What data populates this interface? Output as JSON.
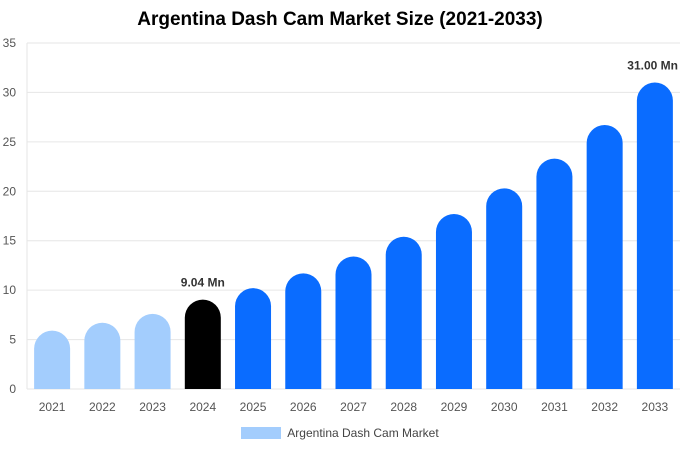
{
  "chart_data": {
    "type": "bar",
    "title": "Argentina Dash Cam Market Size (2021-2033)",
    "categories": [
      "2021",
      "2022",
      "2023",
      "2024",
      "2025",
      "2026",
      "2027",
      "2028",
      "2029",
      "2030",
      "2031",
      "2032",
      "2033"
    ],
    "series": [
      {
        "name": "Argentina Dash Cam Market",
        "values": [
          5.9,
          6.7,
          7.6,
          9.04,
          10.2,
          11.7,
          13.4,
          15.4,
          17.7,
          20.3,
          23.3,
          26.7,
          31.0
        ]
      }
    ],
    "ylim": [
      0,
      35
    ],
    "yticks": [
      0,
      5,
      10,
      15,
      20,
      25,
      30,
      35
    ],
    "grid": true,
    "legend": "bottom",
    "data_labels": [
      {
        "index": 3,
        "text": "9.04 Mn"
      },
      {
        "index": 12,
        "text": "31.00 Mn"
      }
    ],
    "colors": {
      "historical": "#a3cdfd",
      "base_year": "#000000",
      "forecast": "#0a6cff",
      "grid": "#e6e6e6"
    },
    "bar_colors": [
      "historical",
      "historical",
      "historical",
      "base_year",
      "forecast",
      "forecast",
      "forecast",
      "forecast",
      "forecast",
      "forecast",
      "forecast",
      "forecast",
      "forecast"
    ]
  }
}
